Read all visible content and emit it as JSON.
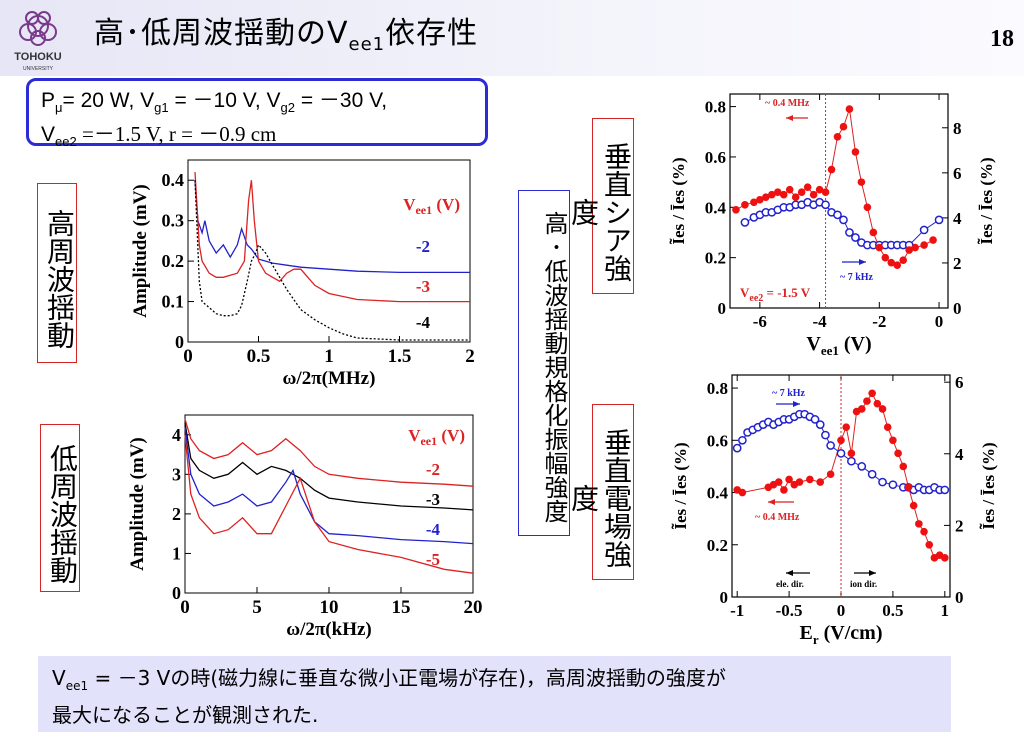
{
  "header": {
    "logo_text": "TOHOKU",
    "logo_sub": "UNIVERSITY",
    "title_main": "高･低周波揺動のV",
    "title_sub": "ee1",
    "title_tail": "依存性",
    "page_number": "18"
  },
  "params": {
    "line1_a": "P",
    "line1_a_sub": "μ",
    "line1_b": "= 20 W, V",
    "line1_b_sub": "g1",
    "line1_c": " = －10 V, V",
    "line1_c_sub": "g2",
    "line1_d": " = －30 V,",
    "line2_a": "V",
    "line2_a_sub": "ee2",
    "line2_b": " =－1.5 V, r = －0.9 cm"
  },
  "labels": {
    "high_freq": "高周波揺動",
    "low_freq": "低周波揺動",
    "normalized": "高･低波揺動規格化振幅強度",
    "perp_shear": "垂直シア強度",
    "perp_field": "垂直電場強度"
  },
  "conclusion": {
    "l1_a": "V",
    "l1_sub": "ee1",
    "l1_b": " = －3 Vの時(磁力線に垂直な微小正電場が存在)，高周波揺動の強度が",
    "l2": "最大になることが観測された."
  },
  "chart_data": [
    {
      "id": "high-freq-spectrum",
      "type": "line",
      "xlabel": "ω/2π(MHz)",
      "ylabel": "Amplitude (mV)",
      "xlim": [
        0,
        2
      ],
      "ylim": [
        0,
        0.45
      ],
      "xticks": [
        "0",
        "0.5",
        "1",
        "1.5",
        "2"
      ],
      "yticks": [
        "0",
        "0.1",
        "0.2",
        "0.3",
        "0.4"
      ],
      "legend_title": "V",
      "legend_title_sub": "ee1",
      "legend_title_unit": " (V)",
      "series": [
        {
          "name": "-2",
          "color": "#2222cc",
          "dash": false,
          "x": [
            0.05,
            0.07,
            0.1,
            0.12,
            0.15,
            0.2,
            0.25,
            0.3,
            0.35,
            0.38,
            0.4,
            0.42,
            0.45,
            0.48,
            0.5,
            0.55,
            0.6,
            0.7,
            0.8,
            1.0,
            1.2,
            1.5,
            2.0
          ],
          "y": [
            0.4,
            0.3,
            0.27,
            0.3,
            0.25,
            0.22,
            0.24,
            0.21,
            0.24,
            0.28,
            0.26,
            0.24,
            0.23,
            0.215,
            0.205,
            0.2,
            0.195,
            0.19,
            0.185,
            0.18,
            0.175,
            0.172,
            0.172
          ]
        },
        {
          "name": "-3",
          "color": "#dd2222",
          "dash": false,
          "x": [
            0.05,
            0.08,
            0.1,
            0.15,
            0.2,
            0.25,
            0.3,
            0.35,
            0.4,
            0.43,
            0.45,
            0.47,
            0.5,
            0.55,
            0.6,
            0.65,
            0.7,
            0.75,
            0.8,
            0.85,
            0.9,
            1.0,
            1.2,
            1.5,
            2.0
          ],
          "y": [
            0.42,
            0.24,
            0.2,
            0.17,
            0.16,
            0.16,
            0.165,
            0.17,
            0.2,
            0.35,
            0.4,
            0.3,
            0.2,
            0.17,
            0.16,
            0.15,
            0.17,
            0.18,
            0.18,
            0.16,
            0.14,
            0.12,
            0.105,
            0.1,
            0.1
          ]
        },
        {
          "name": "-4",
          "color": "#000000",
          "dash": true,
          "x": [
            0.05,
            0.08,
            0.1,
            0.15,
            0.2,
            0.25,
            0.3,
            0.35,
            0.38,
            0.42,
            0.45,
            0.48,
            0.5,
            0.55,
            0.6,
            0.7,
            0.8,
            0.9,
            1.0,
            1.1,
            1.2,
            1.5,
            2.0
          ],
          "y": [
            0.4,
            0.15,
            0.1,
            0.085,
            0.07,
            0.065,
            0.065,
            0.07,
            0.09,
            0.15,
            0.2,
            0.22,
            0.24,
            0.22,
            0.19,
            0.13,
            0.08,
            0.055,
            0.035,
            0.02,
            0.01,
            0.005,
            0.005
          ]
        }
      ]
    },
    {
      "id": "low-freq-spectrum",
      "type": "line",
      "xlabel": "ω/2π(kHz)",
      "ylabel": "Amplitude (mV)",
      "xlim": [
        0,
        20
      ],
      "ylim": [
        0,
        4.5
      ],
      "xticks": [
        "0",
        "5",
        "10",
        "15",
        "20"
      ],
      "yticks": [
        "0",
        "1",
        "2",
        "3",
        "4"
      ],
      "legend_title": "V",
      "legend_title_sub": "ee1",
      "legend_title_unit": " (V)",
      "series": [
        {
          "name": "-2",
          "color": "#dd2222",
          "x": [
            0,
            0.4,
            1,
            2,
            3,
            4,
            5,
            6,
            7,
            8,
            9,
            10,
            12,
            15,
            18,
            20
          ],
          "y": [
            4.4,
            3.9,
            3.6,
            3.4,
            3.5,
            3.8,
            3.5,
            3.6,
            3.9,
            3.6,
            3.2,
            3.0,
            2.9,
            2.8,
            2.75,
            2.7
          ]
        },
        {
          "name": "-3",
          "color": "#000000",
          "x": [
            0,
            0.4,
            1,
            2,
            3,
            4,
            5,
            6,
            7,
            7.5,
            8,
            9,
            10,
            12,
            15,
            18,
            20
          ],
          "y": [
            4.3,
            3.4,
            3.1,
            2.9,
            3.0,
            3.3,
            3.0,
            3.2,
            3.1,
            3.0,
            2.9,
            2.6,
            2.4,
            2.3,
            2.2,
            2.15,
            2.1
          ]
        },
        {
          "name": "-4",
          "color": "#2222cc",
          "x": [
            0,
            0.4,
            1,
            2,
            3,
            4,
            5,
            6,
            7,
            7.5,
            8,
            9,
            10,
            12,
            15,
            18,
            20
          ],
          "y": [
            4.2,
            3.0,
            2.5,
            2.2,
            2.3,
            2.5,
            2.2,
            2.3,
            2.8,
            3.1,
            2.5,
            1.8,
            1.5,
            1.45,
            1.35,
            1.3,
            1.25
          ]
        },
        {
          "name": "-5",
          "color": "#dd2222",
          "x": [
            0,
            0.4,
            1,
            2,
            3,
            4,
            5,
            6,
            7,
            8,
            9,
            10,
            12,
            15,
            18,
            20
          ],
          "y": [
            4.0,
            2.5,
            1.9,
            1.5,
            1.6,
            1.9,
            1.5,
            1.5,
            2.2,
            2.9,
            1.8,
            1.3,
            1.1,
            0.9,
            0.6,
            0.5
          ]
        }
      ]
    },
    {
      "id": "shear-dependence",
      "type": "scatter",
      "xlabel": "V",
      "xlabel_sub": "ee1",
      "xlabel_unit": " (V)",
      "ylabel_left": "Ĩes / Īes (%)",
      "ylabel_right": "Ĩes / Īes (%)",
      "xlim": [
        -7,
        0.3
      ],
      "ylim_left": [
        0,
        0.85
      ],
      "ylim_right": [
        0,
        9.5
      ],
      "xticks": [
        "-6",
        "-4",
        "-2",
        "0"
      ],
      "yticks_left": [
        "0",
        "0.2",
        "0.4",
        "0.6",
        "0.8"
      ],
      "yticks_right": [
        "0",
        "2",
        "4",
        "6",
        "8"
      ],
      "annotations": {
        "high": "~ 0.4 MHz",
        "low": "~ 7 kHz",
        "vee2": "V",
        "vee2_sub": "ee2",
        "vee2_tail": " = -1.5 V"
      },
      "red_series": {
        "name": "~ 0.4 MHz",
        "axis": "left",
        "x": [
          -6.8,
          -6.5,
          -6.2,
          -6.0,
          -5.8,
          -5.6,
          -5.4,
          -5.2,
          -5.0,
          -4.8,
          -4.6,
          -4.4,
          -4.2,
          -4.0,
          -3.8,
          -3.6,
          -3.4,
          -3.2,
          -3.0,
          -2.8,
          -2.6,
          -2.4,
          -2.2,
          -2.0,
          -1.8,
          -1.6,
          -1.4,
          -1.2,
          -1.0,
          -0.8,
          -0.5,
          -0.2
        ],
        "y": [
          0.39,
          0.41,
          0.42,
          0.43,
          0.44,
          0.45,
          0.46,
          0.45,
          0.47,
          0.44,
          0.46,
          0.48,
          0.45,
          0.47,
          0.46,
          0.55,
          0.68,
          0.72,
          0.79,
          0.62,
          0.5,
          0.4,
          0.3,
          0.24,
          0.2,
          0.18,
          0.17,
          0.19,
          0.23,
          0.24,
          0.25,
          0.27
        ]
      },
      "blue_series": {
        "name": "~ 7 kHz",
        "axis": "left",
        "x": [
          -6.5,
          -6.2,
          -6.0,
          -5.8,
          -5.6,
          -5.4,
          -5.2,
          -5.0,
          -4.8,
          -4.6,
          -4.4,
          -4.2,
          -4.0,
          -3.8,
          -3.6,
          -3.4,
          -3.2,
          -3.0,
          -2.8,
          -2.6,
          -2.4,
          -2.2,
          -2.0,
          -1.8,
          -1.6,
          -1.4,
          -1.2,
          -1.0,
          -0.5,
          0.0
        ],
        "y": [
          0.34,
          0.36,
          0.37,
          0.38,
          0.38,
          0.39,
          0.4,
          0.4,
          0.41,
          0.41,
          0.42,
          0.41,
          0.42,
          0.41,
          0.38,
          0.37,
          0.35,
          0.3,
          0.28,
          0.26,
          0.25,
          0.25,
          0.25,
          0.25,
          0.25,
          0.25,
          0.25,
          0.25,
          0.31,
          0.35
        ]
      }
    },
    {
      "id": "field-dependence",
      "type": "scatter",
      "xlabel": "E",
      "xlabel_sub": "r",
      "xlabel_unit": " (V/cm)",
      "ylabel_left": "Ĩes / Īes (%)",
      "ylabel_right": "Ĩes / Īes (%)",
      "xlim": [
        -1.05,
        1.05
      ],
      "ylim_left": [
        0,
        0.85
      ],
      "ylim_right": [
        0,
        6.2
      ],
      "xticks": [
        "-1",
        "-0.5",
        "0",
        "0.5",
        "1"
      ],
      "yticks_left": [
        "0",
        "0.2",
        "0.4",
        "0.6",
        "0.8"
      ],
      "yticks_right": [
        "0",
        "2",
        "4",
        "6"
      ],
      "annotations": {
        "high": "~ 0.4 MHz",
        "low": "~ 7 kHz",
        "ele": "ele. dir.",
        "ion": "ion dir."
      },
      "red_series": {
        "name": "~ 0.4 MHz",
        "axis": "left",
        "x": [
          -1.0,
          -0.95,
          -0.7,
          -0.65,
          -0.6,
          -0.55,
          -0.5,
          -0.45,
          -0.4,
          -0.3,
          -0.2,
          -0.1,
          0.0,
          0.05,
          0.1,
          0.15,
          0.2,
          0.25,
          0.3,
          0.35,
          0.4,
          0.45,
          0.5,
          0.55,
          0.6,
          0.65,
          0.7,
          0.75,
          0.8,
          0.85,
          0.9,
          0.95,
          1.0
        ],
        "y": [
          0.41,
          0.4,
          0.42,
          0.43,
          0.44,
          0.41,
          0.45,
          0.43,
          0.44,
          0.45,
          0.44,
          0.47,
          0.6,
          0.65,
          0.55,
          0.71,
          0.72,
          0.75,
          0.78,
          0.74,
          0.72,
          0.65,
          0.6,
          0.55,
          0.5,
          0.42,
          0.35,
          0.28,
          0.25,
          0.2,
          0.15,
          0.16,
          0.15
        ]
      },
      "blue_series": {
        "name": "~ 7 kHz",
        "axis": "left",
        "x": [
          -1.0,
          -0.95,
          -0.9,
          -0.85,
          -0.8,
          -0.75,
          -0.7,
          -0.65,
          -0.6,
          -0.55,
          -0.5,
          -0.45,
          -0.4,
          -0.35,
          -0.3,
          -0.25,
          -0.2,
          -0.15,
          -0.1,
          0.0,
          0.1,
          0.2,
          0.3,
          0.4,
          0.5,
          0.6,
          0.65,
          0.7,
          0.75,
          0.8,
          0.85,
          0.9,
          0.95,
          1.0
        ],
        "y": [
          0.57,
          0.6,
          0.63,
          0.64,
          0.65,
          0.66,
          0.67,
          0.66,
          0.67,
          0.68,
          0.68,
          0.69,
          0.7,
          0.7,
          0.69,
          0.68,
          0.66,
          0.62,
          0.58,
          0.55,
          0.52,
          0.5,
          0.47,
          0.44,
          0.43,
          0.42,
          0.42,
          0.41,
          0.42,
          0.41,
          0.41,
          0.42,
          0.41,
          0.41
        ]
      }
    }
  ]
}
